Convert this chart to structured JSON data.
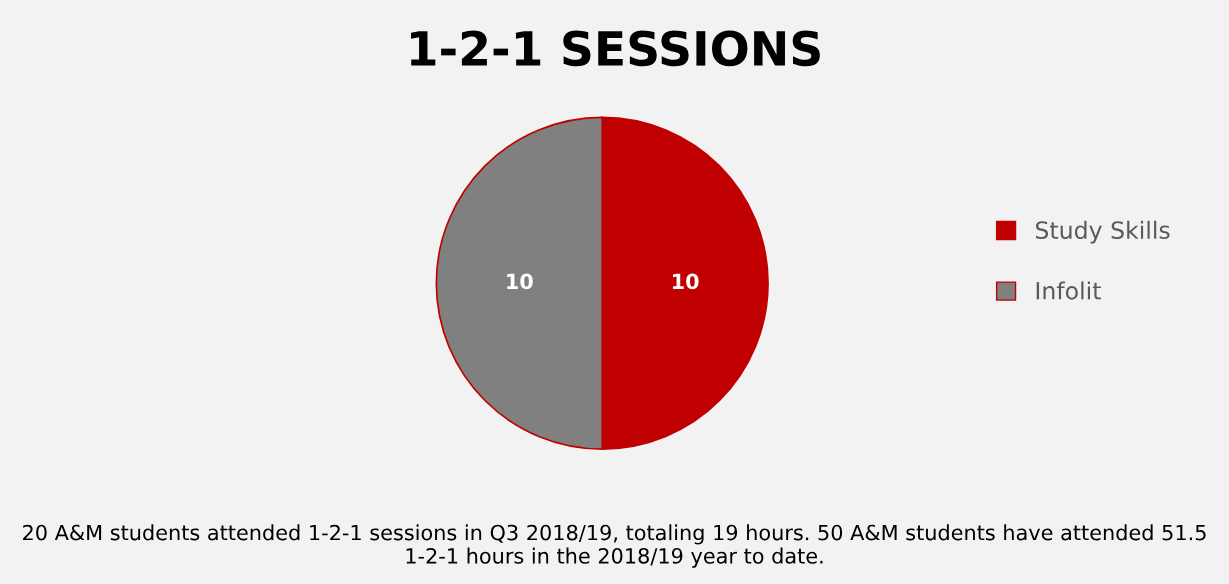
{
  "chart_data": {
    "type": "pie",
    "title": "1-2-1 SESSIONS",
    "categories": [
      "Study Skills",
      "Infolit"
    ],
    "values": [
      10,
      10
    ],
    "colors": [
      "#c00000",
      "#808080"
    ],
    "data_labels": true,
    "legend": "right",
    "annotations": [
      "20 A&M students attended 1-2-1 sessions in Q3 2018/19, totaling 19 hours. 50 A&M students have attended 51.5 1-2-1 hours in the 2018/19 year to date."
    ]
  }
}
